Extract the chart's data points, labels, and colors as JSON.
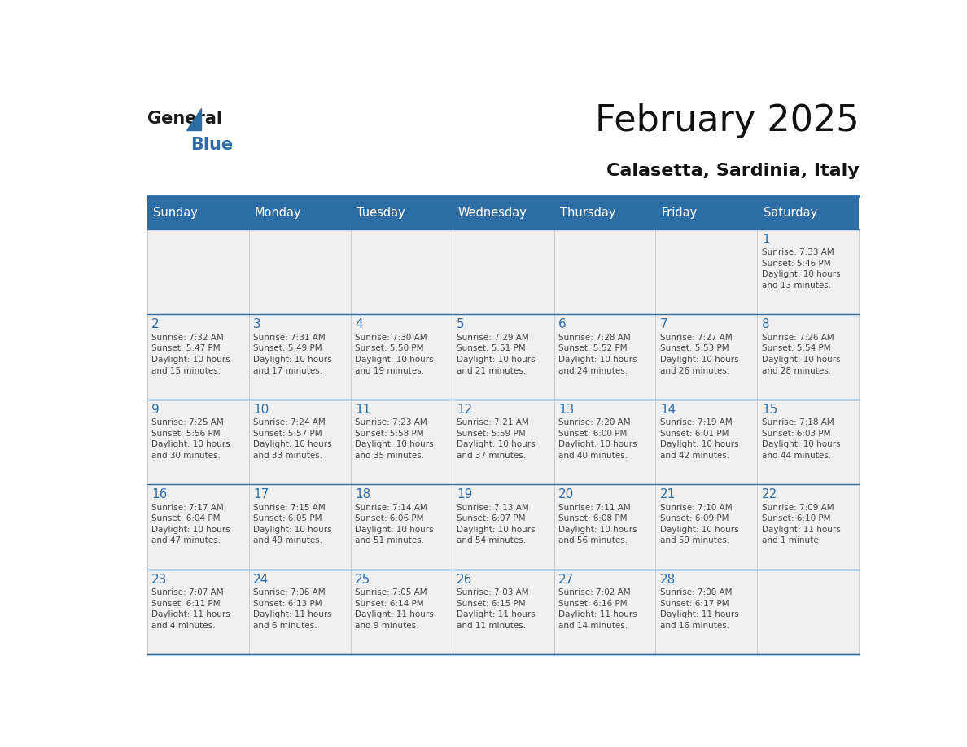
{
  "title": "February 2025",
  "subtitle": "Calasetta, Sardinia, Italy",
  "header_bg": "#2E6DA4",
  "header_text_color": "#FFFFFF",
  "cell_bg": "#F0F0F0",
  "day_number_color": "#2E6DA4",
  "info_text_color": "#444444",
  "border_color": "#2E6DA4",
  "days_of_week": [
    "Sunday",
    "Monday",
    "Tuesday",
    "Wednesday",
    "Thursday",
    "Friday",
    "Saturday"
  ],
  "calendar": [
    [
      null,
      null,
      null,
      null,
      null,
      null,
      {
        "day": 1,
        "sunrise": "7:33 AM",
        "sunset": "5:46 PM",
        "daylight": "10 hours\nand 13 minutes."
      }
    ],
    [
      {
        "day": 2,
        "sunrise": "7:32 AM",
        "sunset": "5:47 PM",
        "daylight": "10 hours\nand 15 minutes."
      },
      {
        "day": 3,
        "sunrise": "7:31 AM",
        "sunset": "5:49 PM",
        "daylight": "10 hours\nand 17 minutes."
      },
      {
        "day": 4,
        "sunrise": "7:30 AM",
        "sunset": "5:50 PM",
        "daylight": "10 hours\nand 19 minutes."
      },
      {
        "day": 5,
        "sunrise": "7:29 AM",
        "sunset": "5:51 PM",
        "daylight": "10 hours\nand 21 minutes."
      },
      {
        "day": 6,
        "sunrise": "7:28 AM",
        "sunset": "5:52 PM",
        "daylight": "10 hours\nand 24 minutes."
      },
      {
        "day": 7,
        "sunrise": "7:27 AM",
        "sunset": "5:53 PM",
        "daylight": "10 hours\nand 26 minutes."
      },
      {
        "day": 8,
        "sunrise": "7:26 AM",
        "sunset": "5:54 PM",
        "daylight": "10 hours\nand 28 minutes."
      }
    ],
    [
      {
        "day": 9,
        "sunrise": "7:25 AM",
        "sunset": "5:56 PM",
        "daylight": "10 hours\nand 30 minutes."
      },
      {
        "day": 10,
        "sunrise": "7:24 AM",
        "sunset": "5:57 PM",
        "daylight": "10 hours\nand 33 minutes."
      },
      {
        "day": 11,
        "sunrise": "7:23 AM",
        "sunset": "5:58 PM",
        "daylight": "10 hours\nand 35 minutes."
      },
      {
        "day": 12,
        "sunrise": "7:21 AM",
        "sunset": "5:59 PM",
        "daylight": "10 hours\nand 37 minutes."
      },
      {
        "day": 13,
        "sunrise": "7:20 AM",
        "sunset": "6:00 PM",
        "daylight": "10 hours\nand 40 minutes."
      },
      {
        "day": 14,
        "sunrise": "7:19 AM",
        "sunset": "6:01 PM",
        "daylight": "10 hours\nand 42 minutes."
      },
      {
        "day": 15,
        "sunrise": "7:18 AM",
        "sunset": "6:03 PM",
        "daylight": "10 hours\nand 44 minutes."
      }
    ],
    [
      {
        "day": 16,
        "sunrise": "7:17 AM",
        "sunset": "6:04 PM",
        "daylight": "10 hours\nand 47 minutes."
      },
      {
        "day": 17,
        "sunrise": "7:15 AM",
        "sunset": "6:05 PM",
        "daylight": "10 hours\nand 49 minutes."
      },
      {
        "day": 18,
        "sunrise": "7:14 AM",
        "sunset": "6:06 PM",
        "daylight": "10 hours\nand 51 minutes."
      },
      {
        "day": 19,
        "sunrise": "7:13 AM",
        "sunset": "6:07 PM",
        "daylight": "10 hours\nand 54 minutes."
      },
      {
        "day": 20,
        "sunrise": "7:11 AM",
        "sunset": "6:08 PM",
        "daylight": "10 hours\nand 56 minutes."
      },
      {
        "day": 21,
        "sunrise": "7:10 AM",
        "sunset": "6:09 PM",
        "daylight": "10 hours\nand 59 minutes."
      },
      {
        "day": 22,
        "sunrise": "7:09 AM",
        "sunset": "6:10 PM",
        "daylight": "11 hours\nand 1 minute."
      }
    ],
    [
      {
        "day": 23,
        "sunrise": "7:07 AM",
        "sunset": "6:11 PM",
        "daylight": "11 hours\nand 4 minutes."
      },
      {
        "day": 24,
        "sunrise": "7:06 AM",
        "sunset": "6:13 PM",
        "daylight": "11 hours\nand 6 minutes."
      },
      {
        "day": 25,
        "sunrise": "7:05 AM",
        "sunset": "6:14 PM",
        "daylight": "11 hours\nand 9 minutes."
      },
      {
        "day": 26,
        "sunrise": "7:03 AM",
        "sunset": "6:15 PM",
        "daylight": "11 hours\nand 11 minutes."
      },
      {
        "day": 27,
        "sunrise": "7:02 AM",
        "sunset": "6:16 PM",
        "daylight": "11 hours\nand 14 minutes."
      },
      {
        "day": 28,
        "sunrise": "7:00 AM",
        "sunset": "6:17 PM",
        "daylight": "11 hours\nand 16 minutes."
      },
      null
    ]
  ],
  "logo_text_general": "General",
  "logo_text_blue": "Blue",
  "logo_color_general": "#1a1a1a",
  "logo_color_blue": "#2E6DA4"
}
